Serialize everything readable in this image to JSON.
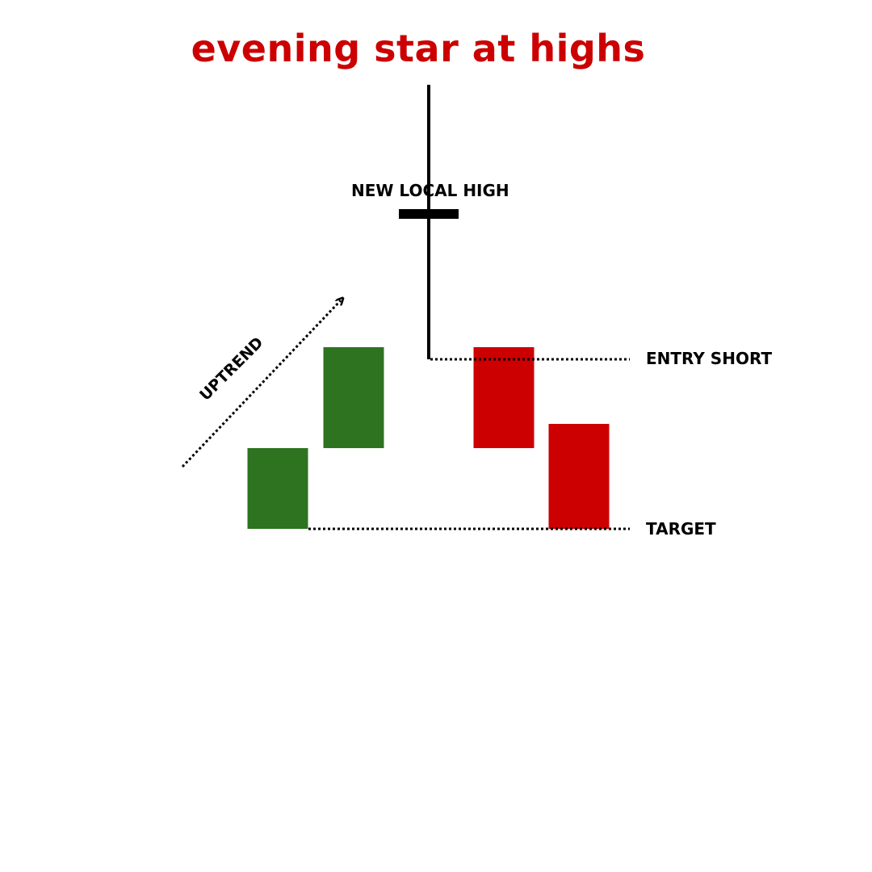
{
  "title": "evening star at highs",
  "labels": {
    "new_local_high": "NEW LOCAL HIGH",
    "entry_short": "ENTRY SHORT",
    "target": "TARGET",
    "uptrend": "UPTREND"
  },
  "colors": {
    "title": "#cc0000",
    "bullish": "#2d7320",
    "bearish": "#cc0000",
    "doji": "#000000",
    "text": "#000000"
  },
  "chart_data": {
    "type": "candlestick",
    "title": "evening star at highs",
    "candles": [
      {
        "name": "bullish-1",
        "direction": "up",
        "open": 1.0,
        "close": 2.0
      },
      {
        "name": "bullish-2",
        "direction": "up",
        "open": 2.0,
        "close": 3.25
      },
      {
        "name": "doji",
        "direction": "doji",
        "open": 4.9,
        "close": 4.9,
        "high": 6.5,
        "low": 3.1
      },
      {
        "name": "bearish-1",
        "direction": "down",
        "open": 3.25,
        "close": 2.0
      },
      {
        "name": "bearish-2",
        "direction": "down",
        "open": 2.3,
        "close": 1.0
      }
    ],
    "levels": [
      {
        "name": "entry-short",
        "value": 3.1,
        "label": "ENTRY SHORT"
      },
      {
        "name": "target",
        "value": 1.0,
        "label": "TARGET"
      }
    ],
    "annotations": [
      "NEW LOCAL HIGH",
      "UPTREND"
    ]
  }
}
